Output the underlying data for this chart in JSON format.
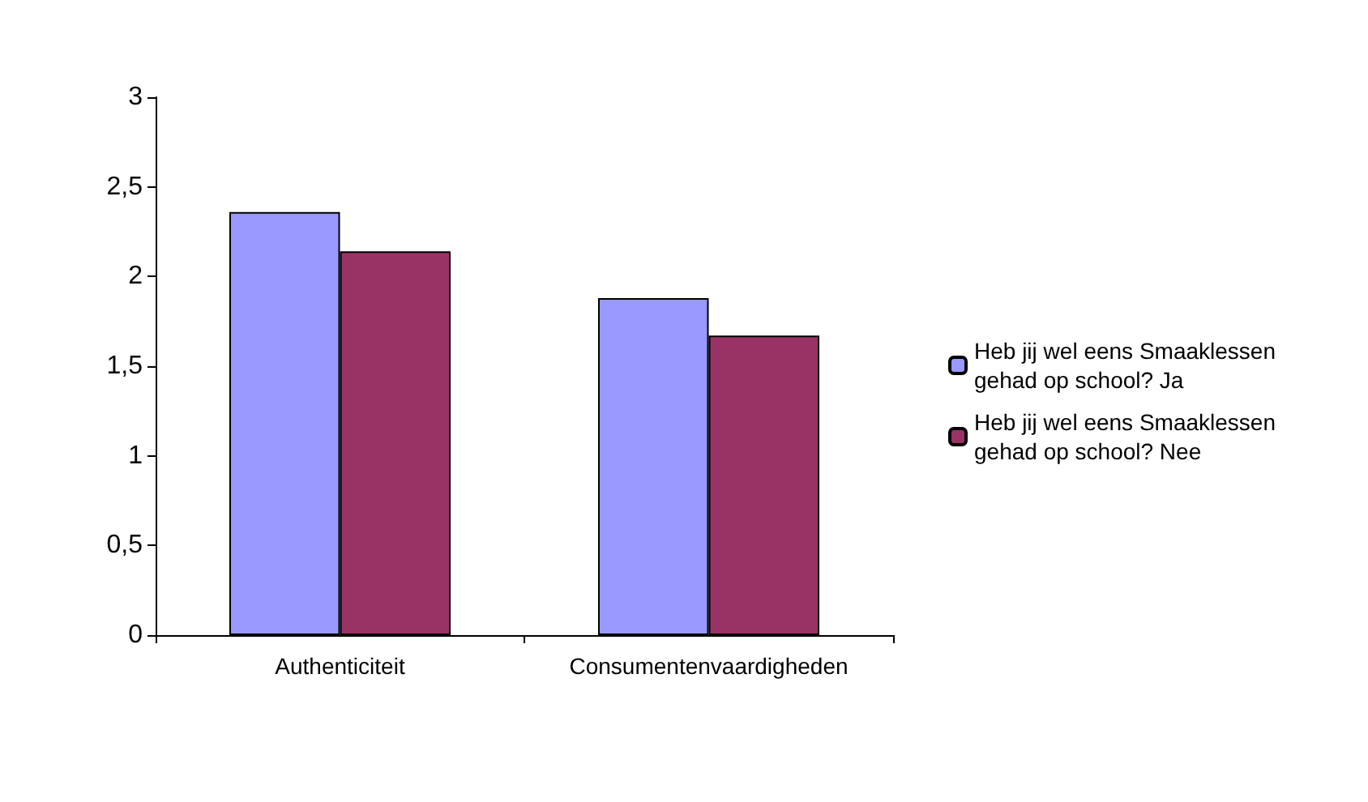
{
  "chart_data": {
    "type": "bar",
    "categories": [
      "Authenticiteit",
      "Consumentenvaardigheden"
    ],
    "series": [
      {
        "name": "Heb jij wel eens Smaaklessen gehad op school? Ja",
        "color": "#9999ff",
        "values": [
          2.36,
          1.88
        ]
      },
      {
        "name": "Heb jij wel eens Smaaklessen gehad op school? Nee",
        "color": "#993366",
        "values": [
          2.14,
          1.67
        ]
      }
    ],
    "ylim": [
      0,
      3
    ],
    "yticks": [
      0,
      {
        "value": 0.5,
        "label": "0,5"
      },
      1,
      {
        "value": 1.5,
        "label": "1,5"
      },
      2,
      {
        "value": 2.5,
        "label": "2,5"
      },
      3
    ],
    "grid": false,
    "legend": "right"
  }
}
